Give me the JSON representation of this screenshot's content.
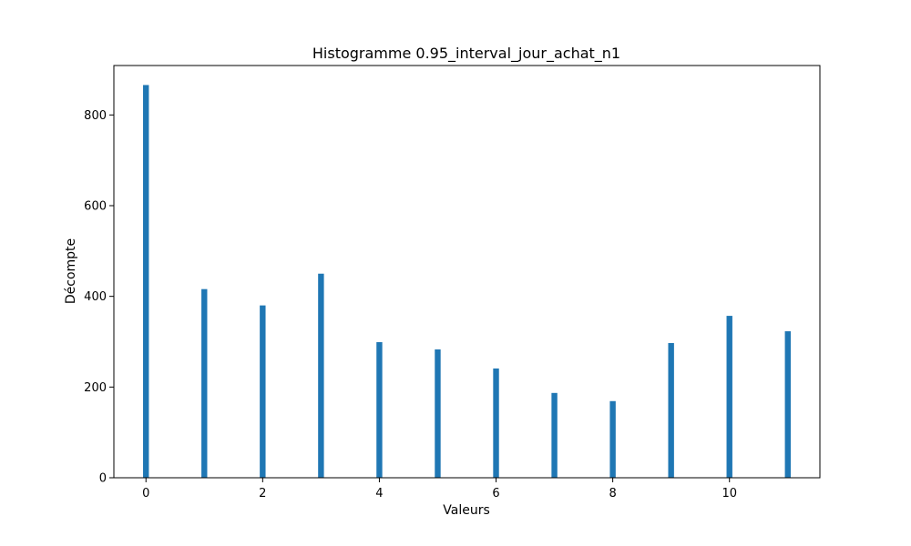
{
  "chart_data": {
    "type": "bar",
    "title": "Histogramme 0.95_interval_jour_achat_n1",
    "xlabel": "Valeurs",
    "ylabel": "Décompte",
    "x": [
      0,
      1,
      2,
      3,
      4,
      5,
      6,
      7,
      8,
      9,
      10,
      11
    ],
    "values": [
      866,
      416,
      380,
      450,
      299,
      283,
      241,
      187,
      169,
      297,
      357,
      323
    ],
    "xlim": [
      -0.55,
      11.55
    ],
    "ylim": [
      0,
      909
    ],
    "xticks": [
      0,
      2,
      4,
      6,
      8,
      10
    ],
    "yticks": [
      0,
      200,
      400,
      600,
      800
    ],
    "bar_color": "#1f77b4",
    "grid": false,
    "legend": "none"
  }
}
